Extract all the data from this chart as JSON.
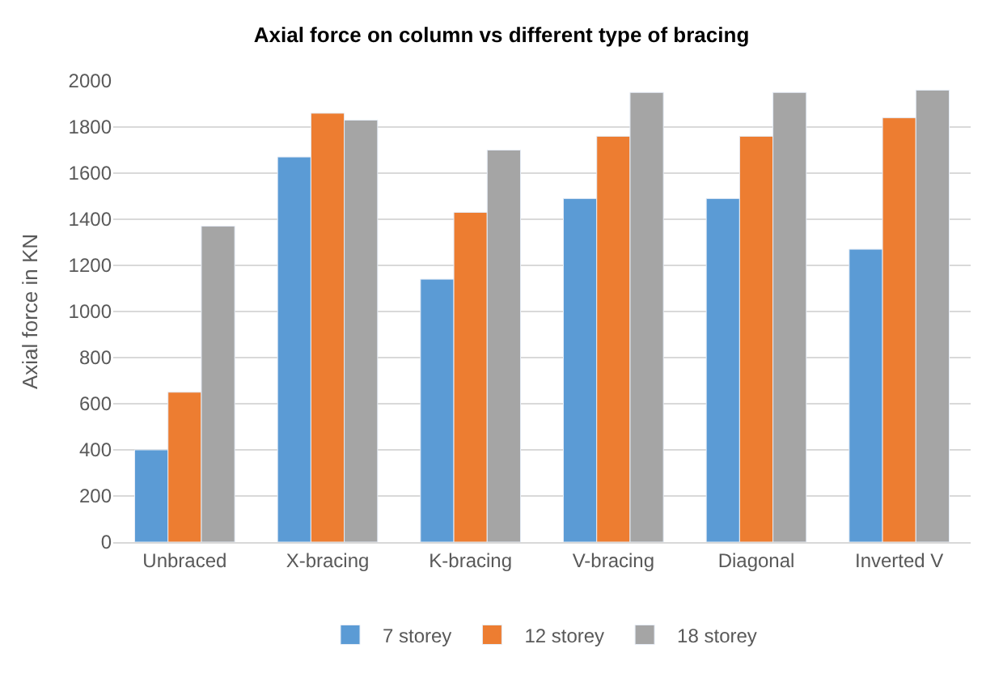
{
  "chart_data": {
    "type": "bar",
    "title": "Axial force on column vs different type of bracing",
    "ylabel": "Axial force in KN",
    "categories": [
      "Unbraced",
      "X-bracing",
      "K-bracing",
      "V-bracing",
      "Diagonal",
      "Inverted V"
    ],
    "series": [
      {
        "name": "7 storey",
        "color": "#5b9bd5",
        "values": [
          400,
          1670,
          1140,
          1490,
          1490,
          1270
        ]
      },
      {
        "name": "12 storey",
        "color": "#ed7d31",
        "values": [
          650,
          1860,
          1430,
          1760,
          1760,
          1840
        ]
      },
      {
        "name": "18 storey",
        "color": "#a5a5a5",
        "values": [
          1370,
          1830,
          1700,
          1950,
          1950,
          1960
        ]
      }
    ],
    "ylim": [
      0,
      2000
    ],
    "yticks": [
      0,
      200,
      400,
      600,
      800,
      1000,
      1200,
      1400,
      1600,
      1800,
      2000
    ],
    "grid": "y",
    "legend": "bottom"
  }
}
